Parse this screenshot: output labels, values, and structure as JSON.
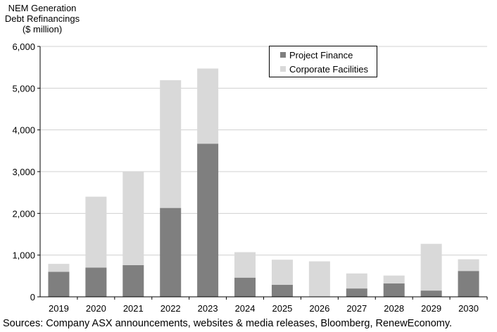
{
  "chart_data": {
    "type": "bar",
    "stacked": true,
    "title": "",
    "ylabel_lines": [
      "NEM Generation",
      "Debt Refinancings",
      "($ million)"
    ],
    "xlabel": "",
    "categories": [
      "2019",
      "2020",
      "2021",
      "2022",
      "2023",
      "2024",
      "2025",
      "2026",
      "2027",
      "2028",
      "2029",
      "2030"
    ],
    "series": [
      {
        "name": "Project Finance",
        "color": "#7f7f7f",
        "values": [
          600,
          700,
          760,
          2130,
          3670,
          460,
          290,
          0,
          200,
          320,
          150,
          620
        ]
      },
      {
        "name": "Corporate Facilities",
        "color": "#d9d9d9",
        "values": [
          190,
          1700,
          2230,
          3060,
          1800,
          610,
          600,
          850,
          360,
          190,
          1120,
          280
        ]
      }
    ],
    "ylim": [
      0,
      6000
    ],
    "yticks": [
      0,
      1000,
      2000,
      3000,
      4000,
      5000,
      6000
    ],
    "ytick_labels": [
      "0",
      "1,000",
      "2,000",
      "3,000",
      "4,000",
      "5,000",
      "6,000"
    ],
    "grid": true,
    "legend_position": "top-center"
  },
  "source_note": "Sources: Company ASX announcements, websites & media releases, Bloomberg, RenewEconomy."
}
